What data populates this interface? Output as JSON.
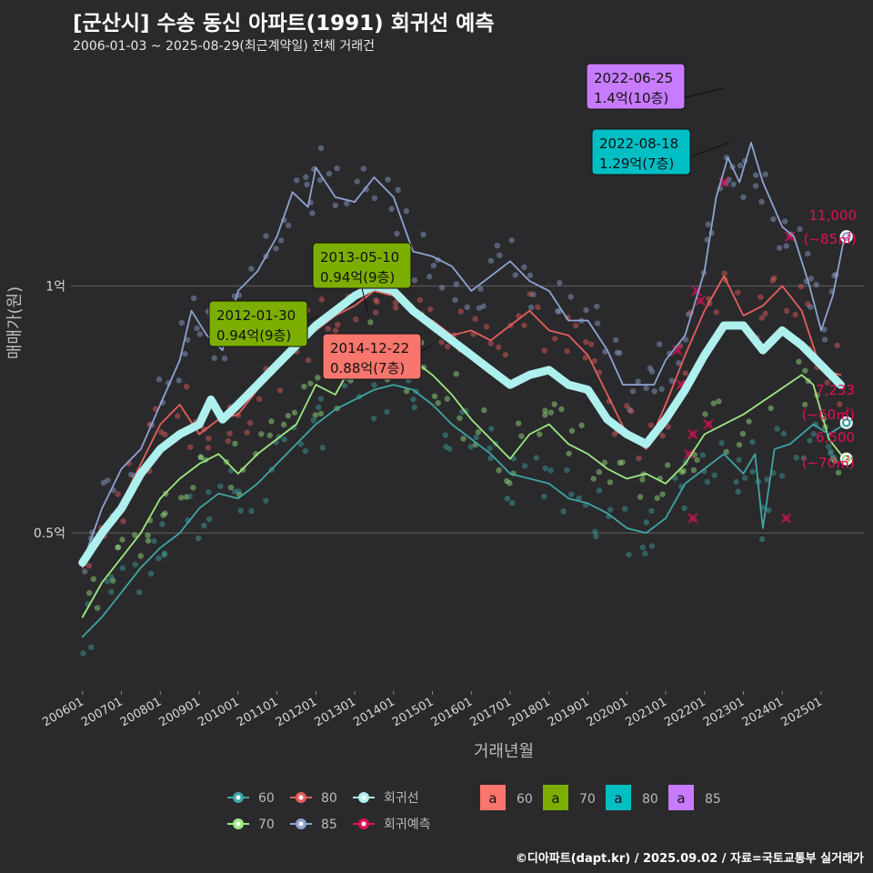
{
  "title": "[군산시] 수송 동신 아파트(1991) 회귀선 예측",
  "subtitle": "2006-01-03 ~ 2025-08-29(최근계약일) 전체 거래건",
  "credit": "©디아파트(dapt.kr) / 2025.09.02 / 자료=국토교통부 실거래가",
  "colors": {
    "background": "#2a2a2c",
    "s60": "#3fa5a5",
    "s70": "#9ee882",
    "s80": "#e85e5e",
    "s85": "#8fa3d1",
    "regression": "#aef0ee",
    "forecast": "#e0105a",
    "lbl60": "#f8766d",
    "lbl70": "#7cae00",
    "lbl80": "#00bfc4",
    "lbl85": "#c77cff"
  },
  "chart_data": {
    "type": "line",
    "xlabel": "거래년월",
    "ylabel": "매매가(원)",
    "xlim": [
      2005.7,
      2026.1
    ],
    "ylim": [
      0.18,
      1.45
    ],
    "y_ticks": [
      {
        "value": 0.5,
        "label": "0.5억"
      },
      {
        "value": 1.0,
        "label": "1억"
      }
    ],
    "x_ticks": [
      {
        "value": 2006,
        "label": "200601"
      },
      {
        "value": 2007,
        "label": "200701"
      },
      {
        "value": 2008,
        "label": "200801"
      },
      {
        "value": 2009,
        "label": "200901"
      },
      {
        "value": 2010,
        "label": "201001"
      },
      {
        "value": 2011,
        "label": "201101"
      },
      {
        "value": 2012,
        "label": "201201"
      },
      {
        "value": 2013,
        "label": "201301"
      },
      {
        "value": 2014,
        "label": "201401"
      },
      {
        "value": 2015,
        "label": "201501"
      },
      {
        "value": 2016,
        "label": "201601"
      },
      {
        "value": 2017,
        "label": "201701"
      },
      {
        "value": 2018,
        "label": "201801"
      },
      {
        "value": 2019,
        "label": "201901"
      },
      {
        "value": 2020,
        "label": "202001"
      },
      {
        "value": 2021,
        "label": "202101"
      },
      {
        "value": 2022,
        "label": "202201"
      },
      {
        "value": 2023,
        "label": "202301"
      },
      {
        "value": 2024,
        "label": "202401"
      },
      {
        "value": 2025,
        "label": "202501"
      }
    ],
    "series": [
      {
        "name": "85",
        "color": "#8fa3d1",
        "x": [
          2006.0,
          2006.5,
          2007.0,
          2007.5,
          2008.0,
          2008.5,
          2008.8,
          2009.2,
          2009.6,
          2010.0,
          2010.5,
          2011.0,
          2011.4,
          2011.8,
          2012.0,
          2012.5,
          2013.0,
          2013.5,
          2014.0,
          2014.5,
          2015.0,
          2015.5,
          2016.0,
          2016.5,
          2017.0,
          2017.5,
          2018.0,
          2018.5,
          2019.0,
          2019.5,
          2019.9,
          2020.3,
          2020.7,
          2021.0,
          2021.5,
          2022.0,
          2022.3,
          2022.6,
          2022.9,
          2023.2,
          2023.5,
          2024.0,
          2024.3,
          2024.7,
          2025.0,
          2025.3,
          2025.6
        ],
        "values": [
          0.44,
          0.55,
          0.63,
          0.67,
          0.76,
          0.85,
          0.95,
          0.9,
          0.87,
          0.99,
          1.03,
          1.1,
          1.19,
          1.16,
          1.24,
          1.18,
          1.17,
          1.22,
          1.18,
          1.07,
          1.06,
          1.04,
          0.99,
          1.02,
          1.05,
          1.01,
          0.99,
          0.93,
          0.93,
          0.87,
          0.8,
          0.8,
          0.8,
          0.85,
          0.9,
          1.03,
          1.18,
          1.26,
          1.21,
          1.29,
          1.21,
          1.12,
          1.1,
          1.0,
          0.91,
          0.98,
          1.1
        ]
      },
      {
        "name": "80",
        "color": "#e85e5e",
        "x": [
          2006.0,
          2006.5,
          2007.0,
          2007.5,
          2008.0,
          2008.5,
          2009.0,
          2009.5,
          2010.0,
          2010.5,
          2011.0,
          2011.5,
          2012.0,
          2012.5,
          2013.0,
          2013.5,
          2014.0,
          2014.5,
          2015.0,
          2015.5,
          2016.0,
          2016.5,
          2017.0,
          2017.5,
          2018.0,
          2018.5,
          2019.0,
          2019.5,
          2020.0,
          2020.5,
          2021.0,
          2021.5,
          2022.0,
          2022.5,
          2023.0,
          2023.5,
          2024.0,
          2024.5,
          2025.0,
          2025.5
        ],
        "values": [
          0.43,
          0.5,
          0.56,
          0.64,
          0.72,
          0.76,
          0.7,
          0.73,
          0.74,
          0.79,
          0.84,
          0.89,
          0.91,
          0.94,
          0.96,
          0.99,
          0.98,
          0.95,
          0.93,
          0.9,
          0.91,
          0.89,
          0.92,
          0.95,
          0.91,
          0.9,
          0.86,
          0.78,
          0.7,
          0.67,
          0.76,
          0.86,
          0.95,
          1.02,
          0.94,
          0.96,
          1.0,
          0.95,
          0.83,
          0.82
        ]
      },
      {
        "name": "70",
        "color": "#9ee882",
        "x": [
          2006.0,
          2006.5,
          2007.0,
          2007.5,
          2008.0,
          2008.5,
          2009.0,
          2009.5,
          2010.0,
          2010.5,
          2011.0,
          2011.5,
          2012.0,
          2012.5,
          2013.0,
          2013.5,
          2014.0,
          2014.5,
          2015.0,
          2015.5,
          2016.0,
          2016.5,
          2017.0,
          2017.5,
          2018.0,
          2018.5,
          2019.0,
          2019.5,
          2020.0,
          2020.5,
          2021.0,
          2021.5,
          2022.0,
          2022.5,
          2023.0,
          2024.5,
          2024.8,
          2025.2,
          2025.6
        ],
        "values": [
          0.33,
          0.4,
          0.45,
          0.5,
          0.57,
          0.61,
          0.64,
          0.66,
          0.62,
          0.66,
          0.69,
          0.72,
          0.8,
          0.78,
          0.85,
          0.9,
          0.84,
          0.85,
          0.82,
          0.78,
          0.73,
          0.69,
          0.65,
          0.7,
          0.72,
          0.68,
          0.66,
          0.63,
          0.61,
          0.62,
          0.6,
          0.64,
          0.7,
          0.72,
          0.74,
          0.82,
          0.8,
          0.69,
          0.65
        ]
      },
      {
        "name": "60",
        "color": "#3fa5a5",
        "x": [
          2006.0,
          2006.5,
          2007.0,
          2007.5,
          2008.0,
          2008.5,
          2009.0,
          2009.5,
          2010.0,
          2010.5,
          2011.0,
          2011.5,
          2012.0,
          2012.5,
          2013.0,
          2013.5,
          2014.0,
          2014.5,
          2015.0,
          2015.5,
          2016.0,
          2016.5,
          2017.0,
          2017.5,
          2018.0,
          2018.5,
          2019.0,
          2019.5,
          2020.0,
          2020.5,
          2021.0,
          2021.5,
          2022.0,
          2022.5,
          2023.0,
          2023.3,
          2023.5,
          2023.8,
          2024.2,
          2024.8,
          2025.2,
          2025.6
        ],
        "values": [
          0.29,
          0.33,
          0.38,
          0.43,
          0.47,
          0.5,
          0.55,
          0.58,
          0.57,
          0.6,
          0.64,
          0.68,
          0.72,
          0.75,
          0.77,
          0.79,
          0.8,
          0.79,
          0.76,
          0.72,
          0.69,
          0.66,
          0.62,
          0.61,
          0.6,
          0.57,
          0.56,
          0.54,
          0.51,
          0.5,
          0.53,
          0.6,
          0.63,
          0.66,
          0.62,
          0.66,
          0.51,
          0.67,
          0.68,
          0.72,
          0.7,
          0.72
        ]
      },
      {
        "name": "회귀선",
        "color": "#aef0ee",
        "x": [
          2006.0,
          2006.5,
          2007.0,
          2007.5,
          2008.0,
          2008.5,
          2009.0,
          2009.3,
          2009.6,
          2010.0,
          2010.5,
          2011.0,
          2011.5,
          2012.0,
          2012.5,
          2013.0,
          2013.5,
          2014.0,
          2014.5,
          2015.0,
          2015.5,
          2016.0,
          2016.5,
          2017.0,
          2017.5,
          2018.0,
          2018.5,
          2019.0,
          2019.5,
          2020.0,
          2020.5,
          2021.0,
          2021.5,
          2022.0,
          2022.5,
          2023.0,
          2023.5,
          2024.0,
          2024.5,
          2025.0,
          2025.5
        ],
        "values": [
          0.44,
          0.5,
          0.55,
          0.62,
          0.67,
          0.7,
          0.72,
          0.77,
          0.73,
          0.76,
          0.8,
          0.84,
          0.88,
          0.92,
          0.95,
          0.98,
          1.0,
          0.99,
          0.95,
          0.92,
          0.89,
          0.86,
          0.83,
          0.8,
          0.82,
          0.83,
          0.8,
          0.79,
          0.73,
          0.7,
          0.68,
          0.73,
          0.79,
          0.86,
          0.92,
          0.92,
          0.87,
          0.91,
          0.88,
          0.84,
          0.8
        ]
      }
    ],
    "annotations": [
      {
        "date": "2022-06-25",
        "price": "1.4억(10층)",
        "size": "85",
        "x": 2022.48,
        "y": 1.4
      },
      {
        "date": "2022-08-18",
        "price": "1.29억(7층)",
        "size": "80",
        "x": 2022.63,
        "y": 1.29
      },
      {
        "date": "2013-05-10",
        "price": "0.94억(9층)",
        "size": "70",
        "x": 2013.36,
        "y": 0.94
      },
      {
        "date": "2012-01-30",
        "price": "0.94억(9층)",
        "size": "70",
        "x": 2012.08,
        "y": 0.94
      },
      {
        "date": "2014-12-22",
        "price": "0.88억(7층)",
        "size": "60",
        "x": 2014.97,
        "y": 0.88
      }
    ],
    "forecasts": [
      {
        "size": "85",
        "value": "11,000",
        "area": "(~85㎡)",
        "y": 1.1
      },
      {
        "size": "60",
        "value": "7,233",
        "area": "(~60㎡)",
        "y": 0.7233
      },
      {
        "size": "70",
        "value": "6,500",
        "area": "(~70㎡)",
        "y": 0.65
      }
    ],
    "legend": {
      "lines": [
        {
          "label": "60",
          "key": "s60"
        },
        {
          "label": "80",
          "key": "s80"
        },
        {
          "label": "회귀선",
          "key": "regression"
        },
        {
          "label": "70",
          "key": "s70"
        },
        {
          "label": "85",
          "key": "s85"
        },
        {
          "label": "회귀예측",
          "key": "forecast"
        }
      ],
      "boxes": [
        {
          "glyph": "a",
          "label": "60",
          "key": "lbl60"
        },
        {
          "glyph": "a",
          "label": "70",
          "key": "lbl70"
        },
        {
          "glyph": "a",
          "label": "80",
          "key": "lbl80"
        },
        {
          "glyph": "a",
          "label": "85",
          "key": "lbl85"
        }
      ]
    }
  }
}
